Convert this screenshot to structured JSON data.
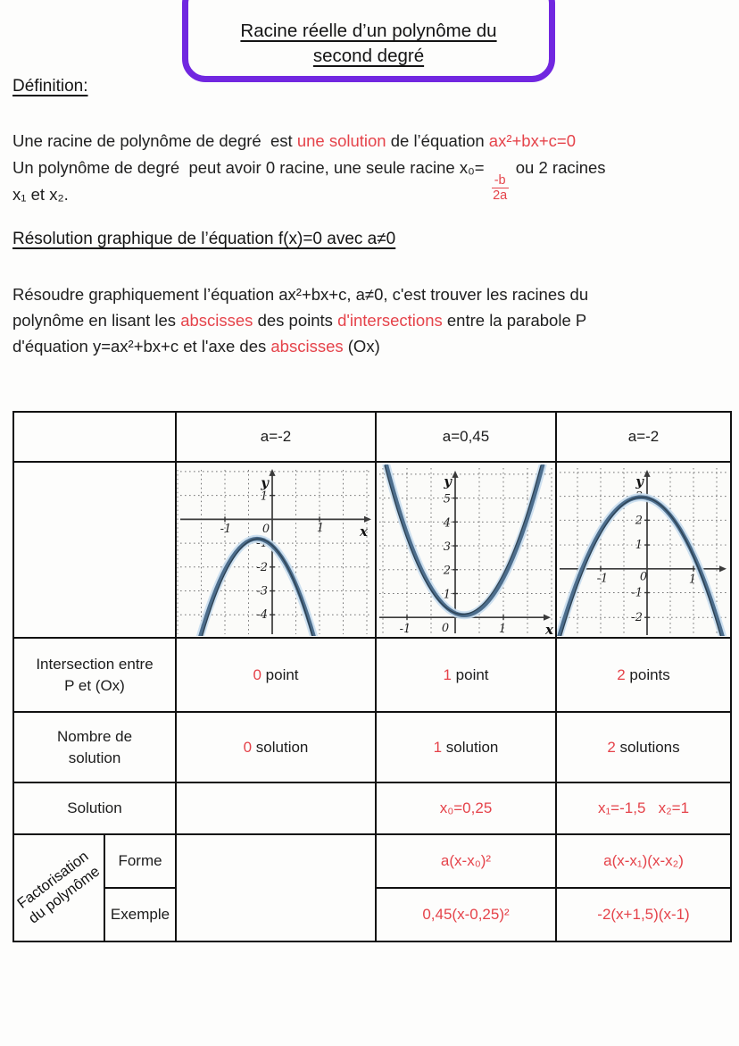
{
  "colors": {
    "red": "#e5434a",
    "purple": "#7127e0",
    "curve_blue": "#4c6d8c",
    "border_black": "#111111"
  },
  "title": {
    "lines": [
      "Racine réelle d’un polynôme du",
      "second degré"
    ]
  },
  "definition": {
    "heading": "Définition:",
    "lines": [
      [
        {
          "t": "Une racine de polynôme de degré  est "
        },
        {
          "t": "une solution",
          "red": true
        },
        {
          "t": " de l’équation "
        },
        {
          "t": "ax²+bx+c=0",
          "red": true
        }
      ],
      [
        {
          "t": "Un polynôme de degré  peut avoir 0 racine, une seule racine x₀= "
        },
        {
          "frac": [
            "-b",
            "2a"
          ]
        },
        {
          "t": " ou 2 racines"
        }
      ],
      [
        {
          "t": "x₁ et x₂."
        }
      ]
    ]
  },
  "resolution": {
    "heading": "Résolution graphique de l’équation f(x)=0 avec a≠0",
    "lines": [
      [
        {
          "t": "Résoudre graphiquement l’équation ax²+bx+c, a≠0, c'est trouver les racines du"
        }
      ],
      [
        {
          "t": "polynôme en lisant les "
        },
        {
          "t": "abscisses",
          "red": true
        },
        {
          "t": " des points "
        },
        {
          "t": "d'intersections",
          "red": true
        },
        {
          "t": " entre la parabole P"
        }
      ],
      [
        {
          "t": "d'équation y=ax²+bx+c et l'axe des "
        },
        {
          "t": "abscisses",
          "red": true
        },
        {
          "t": " (Ox)"
        }
      ]
    ]
  },
  "table": {
    "headers": [
      "a=-2",
      "a=0,45",
      "a=-2"
    ],
    "rows": {
      "intersection": {
        "label": [
          "Intersection entre",
          "P et (Ox)"
        ],
        "cells": [
          [
            {
              "t": "0",
              "red": true
            },
            {
              "t": " point"
            }
          ],
          [
            {
              "t": "1",
              "red": true
            },
            {
              "t": " point"
            }
          ],
          [
            {
              "t": "2",
              "red": true
            },
            {
              "t": " points"
            }
          ]
        ]
      },
      "nombre": {
        "label": [
          "Nombre de",
          "solution"
        ],
        "cells": [
          [
            {
              "t": "0",
              "red": true
            },
            {
              "t": " solution"
            }
          ],
          [
            {
              "t": "1",
              "red": true
            },
            {
              "t": " solution"
            }
          ],
          [
            {
              "t": "2",
              "red": true
            },
            {
              "t": " solutions"
            }
          ]
        ]
      },
      "solution": {
        "label": [
          "Solution"
        ],
        "cells": [
          [],
          [
            {
              "t": "x₀=0,25",
              "red": true
            }
          ],
          [
            {
              "t": "x₁=-1,5   x₂=1",
              "red": true
            }
          ]
        ]
      },
      "factorisation": {
        "label": [
          "Factorisation",
          "du polynôme"
        ],
        "forme": {
          "label": "Forme",
          "cells": [
            [
              {
                "t": "a(x-x₀)²",
                "red": true
              }
            ],
            [
              {
                "t": "a(x-x₁)(x-x₂)",
                "red": true
              }
            ]
          ]
        },
        "exemple": {
          "label": "Exemple",
          "cells": [
            [
              {
                "t": "0,45(x-0,25)²",
                "red": true
              }
            ],
            [
              {
                "t": "-2(x+1,5)(x-1)",
                "red": true
              }
            ]
          ]
        }
      }
    }
  },
  "graphs": [
    {
      "header": "a=-2",
      "x_label": "x",
      "y_label": "y",
      "x_ticks": {
        "m1": "-1",
        "z": "0",
        "p1": "1"
      },
      "y_ticks": {
        "p1": "1",
        "m1": "-1",
        "m2": "-2",
        "m3": "-3",
        "m4": "-4"
      },
      "chart_data": {
        "type": "line",
        "curve": "parabola",
        "a": -2,
        "vertex": [
          -0.35,
          -0.8
        ],
        "roots": [],
        "intersections_with_Ox": 0,
        "x_range": [
          -2,
          2
        ],
        "y_range": [
          -5,
          1.5
        ],
        "grid": true
      }
    },
    {
      "header": "a=0,45",
      "x_label": "x",
      "y_label": "y",
      "x_ticks": {
        "m1": "-1",
        "z": "0",
        "p1": "1"
      },
      "y_ticks": {
        "p5": "5",
        "p4": "4",
        "p3": "3",
        "p2": "2",
        "p1": "1"
      },
      "chart_data": {
        "type": "line",
        "curve": "parabola",
        "a": 0.45,
        "vertex": [
          0.25,
          0
        ],
        "roots": [
          0.25
        ],
        "intersections_with_Ox": 1,
        "x_range": [
          -1.6,
          2
        ],
        "y_range": [
          -0.8,
          6
        ],
        "grid": true
      }
    },
    {
      "header": "a=-2",
      "x_label": "x",
      "y_label": "y",
      "x_ticks": {
        "m1": "-1",
        "z": "0",
        "p1": "1"
      },
      "y_ticks": {
        "p3": "3",
        "p2": "2",
        "p1": "1",
        "m1": "-1",
        "m2": "-2"
      },
      "chart_data": {
        "type": "line",
        "curve": "parabola",
        "a": -2,
        "vertex": [
          -0.25,
          3.1
        ],
        "roots": [
          -1.5,
          1
        ],
        "intersections_with_Ox": 2,
        "x_range": [
          -2,
          1.7
        ],
        "y_range": [
          -2.9,
          4.3
        ],
        "grid": true
      }
    }
  ]
}
